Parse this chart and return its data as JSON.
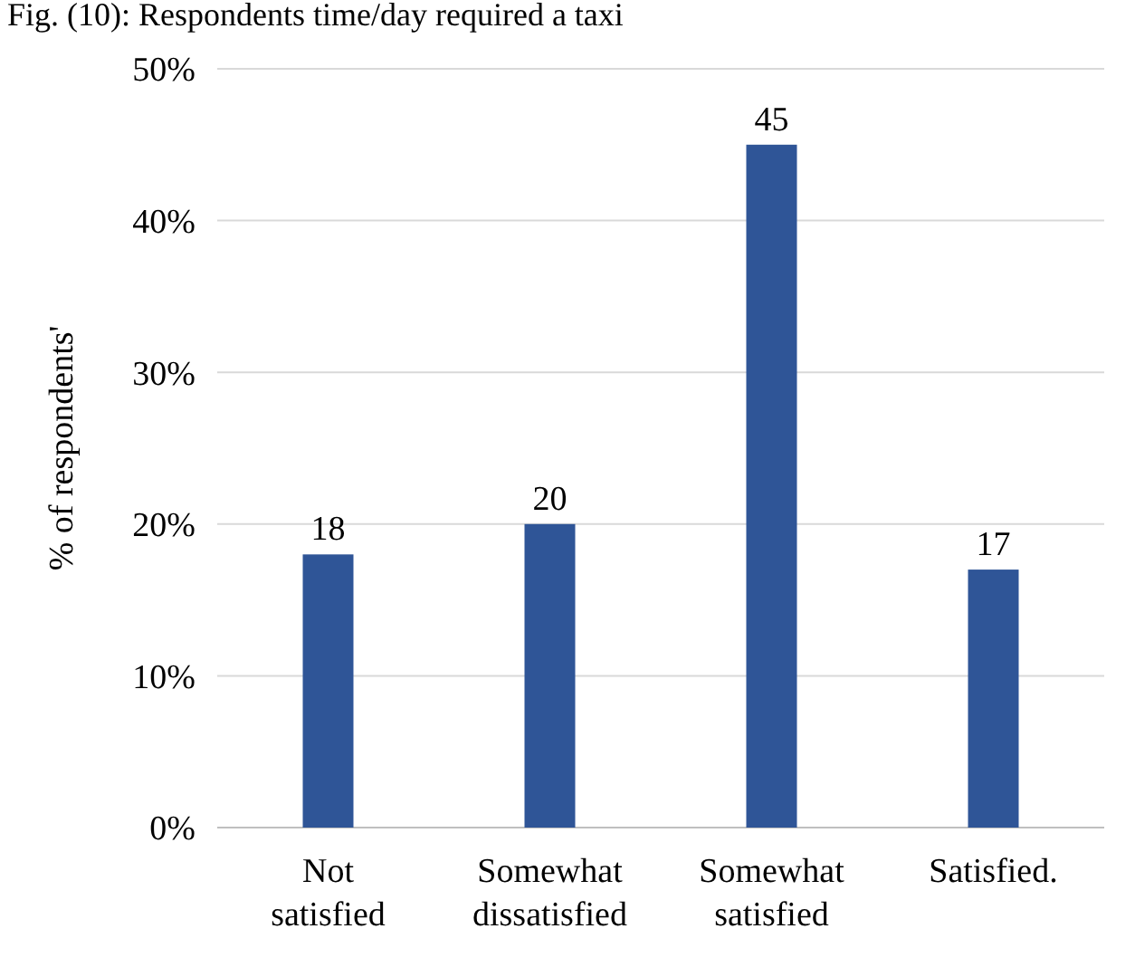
{
  "chart_data": {
    "type": "bar",
    "title": "Fig. (10): Respondents time/day required a taxi",
    "ylabel": "% of respondents'",
    "categories": [
      "Not satisfied",
      "Somewhat dissatisfied",
      "Somewhat satisfied",
      "Satisfied."
    ],
    "values": [
      18,
      20,
      45,
      17
    ],
    "color": "#2f5597",
    "data_labels": true,
    "ylim": [
      0,
      50
    ],
    "yticks": [
      {
        "value": 0,
        "label": "0%"
      },
      {
        "value": 10,
        "label": "10%"
      },
      {
        "value": 20,
        "label": "20%"
      },
      {
        "value": 30,
        "label": "30%"
      },
      {
        "value": 40,
        "label": "40%"
      },
      {
        "value": 50,
        "label": "50%"
      }
    ],
    "grid": "y"
  }
}
